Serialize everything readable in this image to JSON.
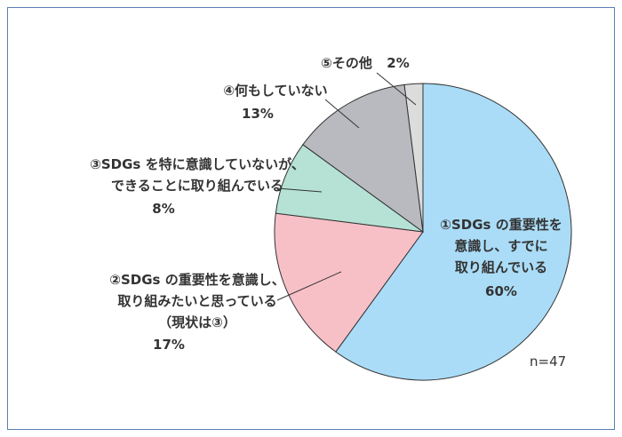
{
  "chart_data": {
    "type": "pie",
    "note": "n=47",
    "slices": [
      {
        "label_lines": [
          "①SDGs の重要性を",
          "意識し、すでに",
          "取り組んでいる"
        ],
        "value": 60,
        "value_label": "60%",
        "color": "#aadcf7"
      },
      {
        "label_lines": [
          "②SDGs の重要性を意識し、",
          "取り組みたいと思っている",
          "（現状は③）"
        ],
        "value": 17,
        "value_label": "17%",
        "color": "#f7c0c7"
      },
      {
        "label_lines": [
          "③SDGs を特に意識していないが、",
          "できることに取り組んでいる"
        ],
        "value": 8,
        "value_label": "8%",
        "color": "#b5e2d5"
      },
      {
        "label_lines": [
          "④何もしていない"
        ],
        "value": 13,
        "value_label": "13%",
        "color": "#b9babf"
      },
      {
        "label_lines": [
          "⑤その他"
        ],
        "value": 2,
        "value_label": "2%",
        "color": "#dcdcdc"
      }
    ]
  }
}
